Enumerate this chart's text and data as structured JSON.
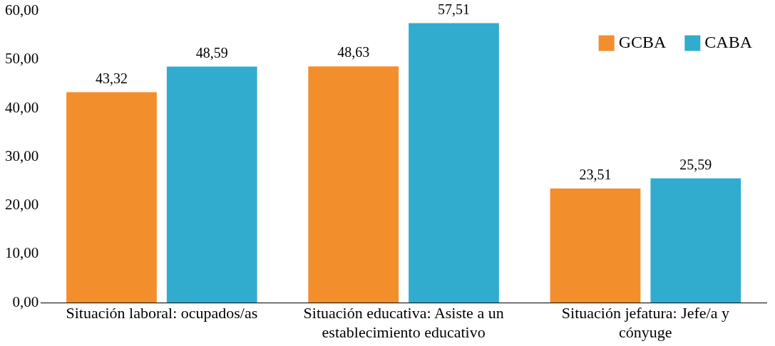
{
  "chart_data": {
    "type": "bar",
    "categories": [
      "Situación laboral: ocupados/as",
      "Situación educativa: Asiste a un establecimiento educativo",
      "Situación jefatura: Jefe/a y cónyuge"
    ],
    "series": [
      {
        "name": "GCBA",
        "color": "#f28e2b",
        "values": [
          43.32,
          48.63,
          23.51
        ],
        "value_labels": [
          "43,32",
          "48,63",
          "23,51"
        ]
      },
      {
        "name": "CABA",
        "color": "#31acce",
        "values": [
          48.59,
          57.51,
          25.59
        ],
        "value_labels": [
          "48,59",
          "57,51",
          "25,59"
        ]
      }
    ],
    "ylim": [
      0,
      60
    ],
    "yticks": [
      {
        "value": 0,
        "label": "0,00"
      },
      {
        "value": 10,
        "label": "10,00"
      },
      {
        "value": 20,
        "label": "20,00"
      },
      {
        "value": 30,
        "label": "30,00"
      },
      {
        "value": 40,
        "label": "40,00"
      },
      {
        "value": 50,
        "label": "50,00"
      },
      {
        "value": 60,
        "label": "60,00"
      }
    ],
    "grid": false,
    "legend": "top right"
  }
}
